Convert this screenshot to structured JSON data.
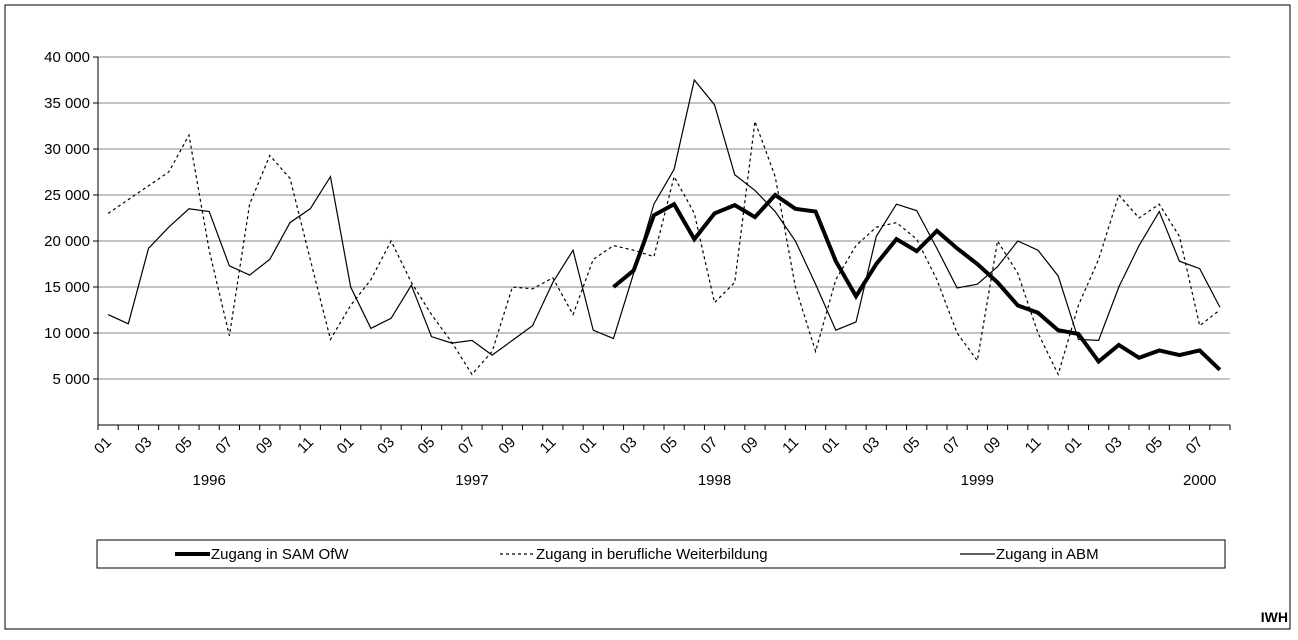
{
  "chart_data": {
    "type": "line",
    "categories": [
      "01",
      null,
      "03",
      null,
      "05",
      null,
      "07",
      null,
      "09",
      null,
      "11",
      null,
      "01",
      null,
      "03",
      null,
      "05",
      null,
      "07",
      null,
      "09",
      null,
      "11",
      null,
      "01",
      null,
      "03",
      null,
      "05",
      null,
      "07",
      null,
      "09",
      null,
      "11",
      null,
      "01",
      null,
      "03",
      null,
      "05",
      null,
      "07",
      null,
      "09",
      null,
      "11",
      null,
      "01",
      null,
      "03",
      null,
      "05",
      null,
      "07",
      null
    ],
    "year_labels": [
      null,
      null,
      null,
      null,
      null,
      "1996",
      null,
      null,
      null,
      null,
      null,
      null,
      null,
      null,
      null,
      null,
      null,
      null,
      "1997",
      null,
      null,
      null,
      null,
      null,
      null,
      null,
      null,
      null,
      null,
      null,
      "1998",
      null,
      null,
      null,
      null,
      null,
      null,
      null,
      null,
      null,
      null,
      null,
      null,
      "1999",
      null,
      null,
      null,
      null,
      null,
      null,
      null,
      null,
      null,
      null,
      "2000",
      null
    ],
    "series": [
      {
        "name": "Zugang in SAM OfW",
        "color": "#000",
        "style": "bold",
        "values": [
          null,
          null,
          null,
          null,
          null,
          null,
          null,
          null,
          null,
          null,
          null,
          null,
          null,
          null,
          null,
          null,
          null,
          null,
          null,
          null,
          null,
          null,
          null,
          null,
          null,
          15000,
          16800,
          22800,
          24000,
          20200,
          23000,
          23900,
          22600,
          25000,
          23500,
          23200,
          17800,
          14000,
          17500,
          20200,
          18900,
          21100,
          19200,
          17500,
          15500,
          13000,
          12200,
          10300,
          9900,
          6900,
          8700,
          7300,
          8100,
          7600,
          8100,
          6000
        ]
      },
      {
        "name": "Zugang in berufliche Weiterbildung",
        "color": "#000",
        "style": "dotted",
        "values": [
          23000,
          24500,
          26000,
          27500,
          31500,
          19000,
          9700,
          24000,
          29300,
          26800,
          18000,
          9300,
          13000,
          15800,
          20000,
          15500,
          12000,
          9000,
          5500,
          8000,
          15000,
          14800,
          16000,
          12000,
          18000,
          19500,
          19000,
          18300,
          27000,
          23000,
          13300,
          15500,
          33000,
          27000,
          15000,
          8000,
          15800,
          19500,
          21500,
          22000,
          20200,
          15800,
          10000,
          7000,
          20000,
          16500,
          10000,
          5500,
          13000,
          18000,
          25000,
          22500,
          24000,
          20500,
          10800,
          12500
        ]
      },
      {
        "name": "Zugang in ABM",
        "color": "#000",
        "style": "thin",
        "values": [
          12000,
          11000,
          19200,
          21500,
          23500,
          23200,
          17300,
          16300,
          18000,
          22000,
          23500,
          27000,
          15000,
          10500,
          11600,
          15200,
          9600,
          8900,
          9200,
          7600,
          9200,
          10800,
          15500,
          19000,
          10300,
          9400,
          16500,
          24000,
          27800,
          37500,
          34800,
          27200,
          25500,
          23200,
          20000,
          15300,
          10300,
          11200,
          20500,
          24000,
          23300,
          19200,
          14900,
          15300,
          17200,
          20000,
          19000,
          16200,
          9300,
          9200,
          15000,
          19500,
          23200,
          17800,
          17000,
          12800
        ]
      }
    ],
    "ylim": [
      0,
      40000
    ],
    "yticks": [
      {
        "value": 5000,
        "label": "5 000"
      },
      {
        "value": 10000,
        "label": "10 000"
      },
      {
        "value": 15000,
        "label": "15 000"
      },
      {
        "value": 20000,
        "label": "20 000"
      },
      {
        "value": 25000,
        "label": "25 000"
      },
      {
        "value": 30000,
        "label": "30 000"
      },
      {
        "value": 35000,
        "label": "35 000"
      },
      {
        "value": 40000,
        "label": "40 000"
      }
    ],
    "grid": true,
    "legend": "bottom",
    "source": "IWH"
  }
}
